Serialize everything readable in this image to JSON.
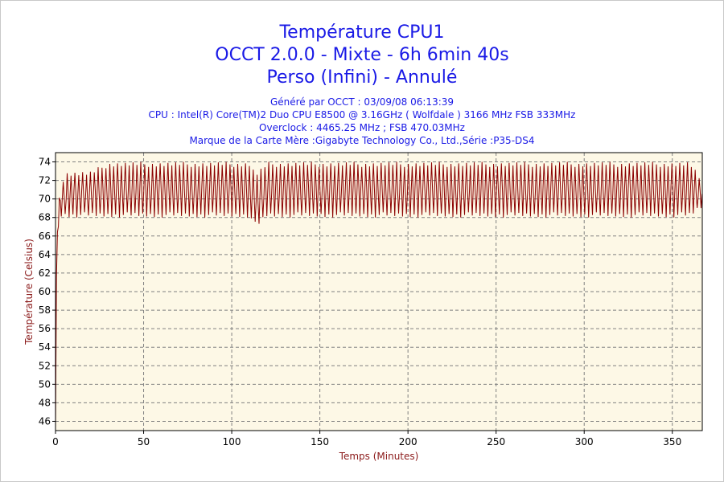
{
  "titles": {
    "line1": "Température CPU1",
    "line2": "OCCT 2.0.0 - Mixte - 6h 6min 40s",
    "line3": "Perso (Infini) - Annulé"
  },
  "info": {
    "generated": "Généré par OCCT : 03/09/08 06:13:39",
    "cpu": "CPU : Intel(R) Core(TM)2 Duo CPU E8500 @ 3.16GHz ( Wolfdale ) 3166 MHz FSB 333MHz",
    "overclock": "Overclock : 4465.25 MHz ; FSB 470.03MHz",
    "motherboard": "Marque de la Carte Mère :Gigabyte Technology Co., Ltd.,Série :P35-DS4"
  },
  "colors": {
    "title": "#1a1ae6",
    "plot_bg": "#fdf8e6",
    "line": "#8b0000",
    "grid": "#808080",
    "axis_title": "#8b1a1a"
  },
  "chart_data": {
    "type": "line",
    "xlabel": "Temps (Minutes)",
    "ylabel": "Température (Celsius)",
    "xlim": [
      0,
      367
    ],
    "ylim": [
      45,
      75
    ],
    "xticks": [
      0,
      50,
      100,
      150,
      200,
      250,
      300,
      350
    ],
    "yticks": [
      46,
      48,
      50,
      52,
      54,
      56,
      58,
      60,
      62,
      64,
      66,
      68,
      70,
      72,
      74
    ],
    "grid": true,
    "series": [
      {
        "x": [
          0,
          0.3,
          0.6,
          1,
          1.5,
          2,
          2.5,
          3,
          4,
          5,
          6,
          8,
          10,
          15,
          20,
          30,
          40,
          50,
          60,
          70,
          80,
          90,
          100,
          105,
          110,
          113,
          115,
          120,
          130,
          140,
          150,
          160,
          170,
          180,
          190,
          200,
          210,
          220,
          230,
          240,
          250,
          260,
          270,
          280,
          290,
          300,
          310,
          320,
          330,
          340,
          350,
          360,
          367
        ],
        "y": [
          45,
          55,
          63,
          66,
          67,
          68,
          69,
          70,
          71,
          70,
          71,
          71,
          71,
          71,
          71,
          71,
          71,
          71,
          71,
          71,
          71,
          71,
          71,
          71,
          71,
          70,
          70,
          71,
          71,
          71,
          71,
          71,
          71,
          71,
          71,
          71,
          71,
          71,
          71,
          71,
          71,
          71,
          71,
          71,
          71,
          71,
          71,
          71,
          71,
          71,
          71,
          71,
          70
        ],
        "low": [
          45,
          55,
          63,
          66,
          66,
          67,
          67,
          68,
          68,
          68,
          68,
          68,
          68,
          68,
          68,
          68,
          68,
          68,
          68,
          68,
          68,
          68,
          68,
          68,
          68,
          67,
          67,
          68,
          68,
          68,
          68,
          68,
          68,
          68,
          68,
          68,
          68,
          68,
          68,
          68,
          68,
          68,
          68,
          68,
          68,
          68,
          68,
          68,
          68,
          68,
          68,
          68,
          69
        ],
        "high": [
          45,
          55,
          63,
          66,
          68,
          70,
          71,
          72,
          72,
          73,
          73,
          73,
          73,
          73,
          73,
          74,
          74,
          74,
          74,
          74,
          74,
          74,
          74,
          74,
          74,
          73,
          73,
          74,
          74,
          74,
          74,
          74,
          74,
          74,
          74,
          74,
          74,
          74,
          74,
          74,
          74,
          74,
          74,
          74,
          74,
          74,
          74,
          74,
          74,
          74,
          74,
          74,
          72
        ]
      }
    ]
  }
}
